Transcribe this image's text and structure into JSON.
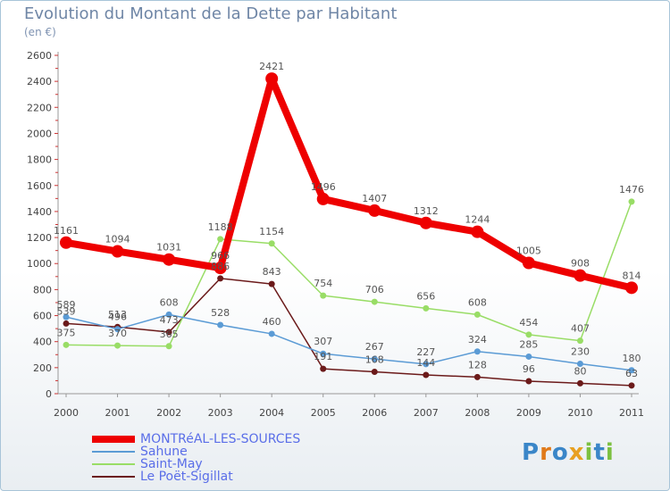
{
  "title": "Evolution du Montant de la Dette par Habitant",
  "subtitle": "(en €)",
  "brand": "Proxiti",
  "chart_data": {
    "type": "line",
    "x": [
      "2000",
      "2001",
      "2002",
      "2003",
      "2004",
      "2005",
      "2006",
      "2007",
      "2008",
      "2009",
      "2010",
      "2011"
    ],
    "ylim": [
      0,
      2600
    ],
    "yticks": [
      0,
      200,
      400,
      600,
      800,
      1000,
      1200,
      1400,
      1600,
      1800,
      2000,
      2200,
      2400,
      2600
    ],
    "grid": false,
    "legend": "bottom-left",
    "series": [
      {
        "name": "MONTRéAL-LES-SOURCES",
        "color": "#ee0000",
        "values": [
          1161,
          1094,
          1031,
          966,
          2421,
          1496,
          1407,
          1312,
          1244,
          1005,
          908,
          814
        ]
      },
      {
        "name": "Sahune",
        "color": "#5b9bd5",
        "values": [
          589,
          496,
          608,
          528,
          460,
          307,
          267,
          227,
          324,
          285,
          230,
          180
        ]
      },
      {
        "name": "Saint-May",
        "color": "#99dd66",
        "values": [
          375,
          370,
          365,
          1188,
          1154,
          754,
          706,
          656,
          608,
          454,
          407,
          1476
        ]
      },
      {
        "name": "Le Poët-Sigillat",
        "color": "#6b1a1a",
        "values": [
          539,
          513,
          473,
          886,
          843,
          191,
          168,
          144,
          128,
          96,
          80,
          63
        ]
      }
    ]
  }
}
